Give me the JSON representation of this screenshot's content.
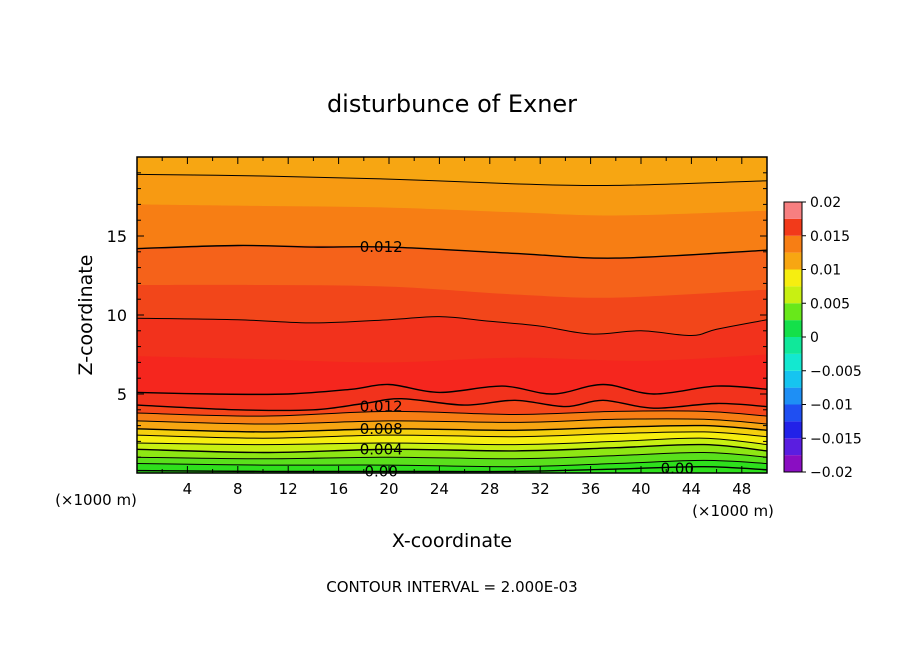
{
  "chart_data": {
    "type": "heatmap",
    "subtype": "filled-contour",
    "title": "disturbunce of Exner",
    "xlabel": "X-coordinate",
    "ylabel": "Z-coordinate",
    "x_unit_left": "(×1000 m)",
    "x_unit_right": "(×1000 m)",
    "footer": "CONTOUR INTERVAL = 2.000E-03",
    "xlim": [
      0,
      50
    ],
    "ylim": [
      0,
      20
    ],
    "x_ticks": [
      4,
      8,
      12,
      16,
      20,
      24,
      28,
      32,
      36,
      40,
      44,
      48
    ],
    "y_ticks": [
      5,
      10,
      15
    ],
    "colorbar": {
      "range": [
        -0.02,
        0.02
      ],
      "tick_values": [
        0.02,
        0.015,
        0.01,
        0.005,
        0,
        -0.005,
        -0.01,
        -0.015,
        -0.02
      ],
      "tick_labels": [
        "0.02",
        "0.015",
        "0.01",
        "0.005",
        "0",
        "−0.005",
        "−0.01",
        "−0.015",
        "−0.02"
      ],
      "bands": [
        {
          "from": -0.02,
          "to": -0.0175,
          "color": "#8a0ec2"
        },
        {
          "from": -0.0175,
          "to": -0.015,
          "color": "#5a1ee0"
        },
        {
          "from": -0.015,
          "to": -0.0125,
          "color": "#2222e8"
        },
        {
          "from": -0.0125,
          "to": -0.01,
          "color": "#1f4ff2"
        },
        {
          "from": -0.01,
          "to": -0.0075,
          "color": "#1e8ff5"
        },
        {
          "from": -0.0075,
          "to": -0.005,
          "color": "#16c4f0"
        },
        {
          "from": -0.005,
          "to": -0.0025,
          "color": "#13e8d0"
        },
        {
          "from": -0.0025,
          "to": 0,
          "color": "#10e89a"
        },
        {
          "from": 0,
          "to": 0.0025,
          "color": "#14e04a"
        },
        {
          "from": 0.0025,
          "to": 0.005,
          "color": "#68e81a"
        },
        {
          "from": 0.005,
          "to": 0.0075,
          "color": "#c8f012"
        },
        {
          "from": 0.0075,
          "to": 0.01,
          "color": "#f6ee10"
        },
        {
          "from": 0.01,
          "to": 0.0125,
          "color": "#f7a612"
        },
        {
          "from": 0.0125,
          "to": 0.015,
          "color": "#f77e14"
        },
        {
          "from": 0.015,
          "to": 0.0175,
          "color": "#f23a1a"
        },
        {
          "from": 0.0175,
          "to": 0.02,
          "color": "#f77f80"
        }
      ]
    },
    "contour_labels": [
      {
        "text": "0.012",
        "x": 17,
        "z": 14.3
      },
      {
        "text": "0.012",
        "x": 17,
        "z": 4.2
      },
      {
        "text": "0.008",
        "x": 17,
        "z": 2.8
      },
      {
        "text": "0.004",
        "x": 17,
        "z": 1.5
      },
      {
        "text": "0.00",
        "x": 17,
        "z": 0.1
      },
      {
        "text": "0.00",
        "x": 40.5,
        "z": 0.3
      }
    ],
    "fill_layers": [
      {
        "color": "#f7a612",
        "x": [
          0,
          50
        ],
        "z": [
          20,
          20
        ]
      },
      {
        "color": "#f79a12",
        "x": [
          0,
          10,
          20,
          30,
          38,
          50
        ],
        "z": [
          18.9,
          18.8,
          18.6,
          18.3,
          18.2,
          18.5
        ]
      },
      {
        "color": "#f77e14",
        "x": [
          0,
          10,
          20,
          30,
          38,
          50
        ],
        "z": [
          17.0,
          16.9,
          16.8,
          16.5,
          16.3,
          16.6
        ]
      },
      {
        "color": "#f5621a",
        "x": [
          0,
          10,
          20,
          30,
          38,
          50
        ],
        "z": [
          14.2,
          14.4,
          14.3,
          13.9,
          13.6,
          14.1
        ]
      },
      {
        "color": "#f2461a",
        "x": [
          0,
          10,
          20,
          30,
          38,
          50
        ],
        "z": [
          11.9,
          11.9,
          11.8,
          11.3,
          11.1,
          11.6
        ]
      },
      {
        "color": "#f2321c",
        "x": [
          0,
          8,
          14,
          20,
          24,
          28,
          32,
          36,
          40,
          44,
          46,
          50
        ],
        "z": [
          9.8,
          9.7,
          9.5,
          9.7,
          9.9,
          9.6,
          9.3,
          8.8,
          9.0,
          8.7,
          9.1,
          9.7
        ]
      },
      {
        "color": "#f5261e",
        "x": [
          0,
          10,
          20,
          30,
          40,
          50
        ],
        "z": [
          7.4,
          7.2,
          7.0,
          7.3,
          7.1,
          7.5
        ]
      },
      {
        "color": "#f2321c",
        "x": [
          0,
          6,
          12,
          17,
          20,
          24,
          29,
          33,
          37,
          41,
          46,
          50
        ],
        "z": [
          5.1,
          5.0,
          5.0,
          5.3,
          5.6,
          5.1,
          5.5,
          5.0,
          5.6,
          5.0,
          5.5,
          5.3
        ]
      },
      {
        "color": "#f5461a",
        "x": [
          0,
          8,
          14,
          18,
          21,
          26,
          30,
          34,
          37,
          41,
          46,
          50
        ],
        "z": [
          4.3,
          4.0,
          4.0,
          4.4,
          4.7,
          4.3,
          4.6,
          4.2,
          4.6,
          4.1,
          4.4,
          4.2
        ]
      },
      {
        "color": "#f77e14",
        "x": [
          0,
          10,
          20,
          30,
          38,
          45,
          50
        ],
        "z": [
          3.8,
          3.6,
          3.9,
          3.7,
          3.9,
          3.9,
          3.6
        ]
      },
      {
        "color": "#f7a612",
        "x": [
          0,
          10,
          20,
          30,
          38,
          45,
          50
        ],
        "z": [
          3.3,
          3.1,
          3.3,
          3.2,
          3.4,
          3.4,
          3.1
        ]
      },
      {
        "color": "#f5d00e",
        "x": [
          0,
          10,
          20,
          30,
          38,
          45,
          50
        ],
        "z": [
          2.8,
          2.6,
          2.8,
          2.7,
          2.9,
          3.0,
          2.7
        ]
      },
      {
        "color": "#f6ee10",
        "x": [
          0,
          10,
          20,
          30,
          38,
          45,
          50
        ],
        "z": [
          2.4,
          2.2,
          2.4,
          2.3,
          2.5,
          2.6,
          2.3
        ]
      },
      {
        "color": "#c8f012",
        "x": [
          0,
          10,
          20,
          30,
          38,
          45,
          50
        ],
        "z": [
          1.9,
          1.8,
          1.9,
          1.8,
          2.0,
          2.2,
          1.8
        ]
      },
      {
        "color": "#8ee614",
        "x": [
          0,
          10,
          20,
          30,
          38,
          45,
          50
        ],
        "z": [
          1.5,
          1.3,
          1.5,
          1.4,
          1.6,
          1.8,
          1.4
        ]
      },
      {
        "color": "#5ae01c",
        "x": [
          0,
          10,
          20,
          30,
          38,
          45,
          50
        ],
        "z": [
          1.0,
          0.9,
          1.0,
          0.9,
          1.1,
          1.3,
          1.0
        ]
      },
      {
        "color": "#2ee01c",
        "x": [
          0,
          10,
          20,
          30,
          38,
          45,
          50
        ],
        "z": [
          0.6,
          0.5,
          0.5,
          0.4,
          0.6,
          0.8,
          0.6
        ]
      }
    ],
    "contour_lines": [
      {
        "width": 1.0,
        "x": [
          0,
          10,
          20,
          30,
          38,
          50
        ],
        "z": [
          18.9,
          18.8,
          18.6,
          18.3,
          18.2,
          18.5
        ]
      },
      {
        "width": 1.4,
        "x": [
          0,
          8,
          14,
          20,
          30,
          38,
          50
        ],
        "z": [
          14.2,
          14.4,
          14.3,
          14.3,
          13.9,
          13.6,
          14.1
        ]
      },
      {
        "width": 1.0,
        "x": [
          0,
          8,
          14,
          20,
          24,
          28,
          32,
          36,
          40,
          44,
          46,
          50
        ],
        "z": [
          9.8,
          9.7,
          9.5,
          9.7,
          9.9,
          9.6,
          9.3,
          8.8,
          9.0,
          8.7,
          9.1,
          9.7
        ]
      },
      {
        "width": 1.4,
        "x": [
          0,
          6,
          12,
          17,
          20,
          24,
          29,
          33,
          37,
          41,
          46,
          50
        ],
        "z": [
          5.1,
          5.0,
          5.0,
          5.3,
          5.6,
          5.1,
          5.5,
          5.0,
          5.6,
          5.0,
          5.5,
          5.3
        ]
      },
      {
        "width": 1.4,
        "x": [
          0,
          8,
          14,
          18,
          21,
          26,
          30,
          34,
          37,
          41,
          46,
          50
        ],
        "z": [
          4.3,
          4.0,
          4.0,
          4.4,
          4.7,
          4.3,
          4.6,
          4.2,
          4.6,
          4.1,
          4.4,
          4.2
        ]
      },
      {
        "width": 1.0,
        "x": [
          0,
          10,
          20,
          30,
          38,
          45,
          50
        ],
        "z": [
          3.8,
          3.6,
          3.9,
          3.7,
          3.9,
          3.9,
          3.6
        ]
      },
      {
        "width": 1.0,
        "x": [
          0,
          10,
          20,
          30,
          38,
          45,
          50
        ],
        "z": [
          3.3,
          3.1,
          3.3,
          3.2,
          3.4,
          3.4,
          3.1
        ]
      },
      {
        "width": 1.4,
        "x": [
          0,
          10,
          20,
          30,
          38,
          45,
          50
        ],
        "z": [
          2.8,
          2.6,
          2.8,
          2.7,
          2.9,
          3.0,
          2.7
        ]
      },
      {
        "width": 1.0,
        "x": [
          0,
          10,
          20,
          30,
          38,
          45,
          50
        ],
        "z": [
          2.4,
          2.2,
          2.4,
          2.3,
          2.5,
          2.6,
          2.3
        ]
      },
      {
        "width": 1.0,
        "x": [
          0,
          10,
          20,
          30,
          38,
          45,
          50
        ],
        "z": [
          1.9,
          1.8,
          1.9,
          1.8,
          2.0,
          2.2,
          1.8
        ]
      },
      {
        "width": 1.4,
        "x": [
          0,
          10,
          20,
          30,
          38,
          45,
          50
        ],
        "z": [
          1.5,
          1.3,
          1.5,
          1.4,
          1.6,
          1.8,
          1.4
        ]
      },
      {
        "width": 1.0,
        "x": [
          0,
          10,
          20,
          30,
          38,
          45,
          50
        ],
        "z": [
          1.0,
          0.9,
          1.0,
          0.9,
          1.1,
          1.3,
          1.0
        ]
      },
      {
        "width": 1.0,
        "x": [
          0,
          10,
          20,
          30,
          38,
          45,
          50
        ],
        "z": [
          0.6,
          0.5,
          0.5,
          0.4,
          0.6,
          0.8,
          0.6
        ]
      },
      {
        "width": 1.4,
        "x": [
          0,
          10,
          20,
          30,
          38,
          45,
          50
        ],
        "z": [
          0.15,
          0.1,
          0.1,
          0.1,
          0.25,
          0.4,
          0.2
        ]
      }
    ],
    "base_color": "#1ce014"
  }
}
